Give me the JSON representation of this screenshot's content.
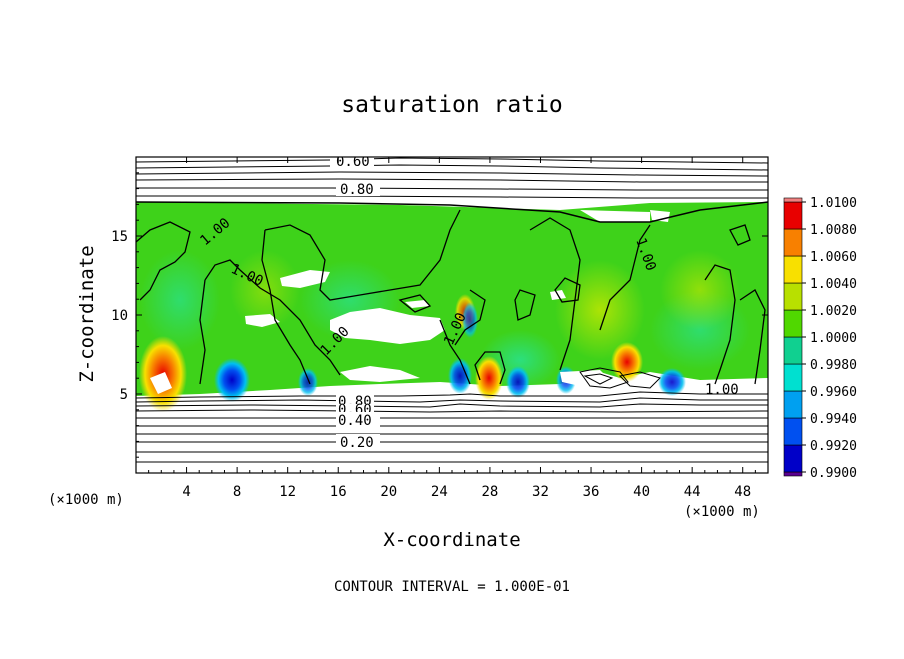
{
  "chart_data": {
    "type": "heatmap",
    "title": "saturation ratio",
    "xlabel": "X-coordinate",
    "ylabel": "Z-coordinate",
    "x_unit": "(×1000 m)",
    "y_unit": "(×1000 m)",
    "xlim": [
      0,
      50
    ],
    "ylim": [
      0,
      20
    ],
    "x_ticks": [
      4,
      8,
      12,
      16,
      20,
      24,
      28,
      32,
      36,
      40,
      44,
      48
    ],
    "y_ticks": [
      5,
      10,
      15
    ],
    "colorbar": {
      "levels": [
        "0.9900",
        "0.9920",
        "0.9940",
        "0.9960",
        "0.9980",
        "1.0000",
        "1.0020",
        "1.0040",
        "1.0060",
        "1.0080",
        "1.0100"
      ],
      "colors": [
        "#5a0090",
        "#0000c8",
        "#0050f0",
        "#00a0f0",
        "#00e0d0",
        "#10d090",
        "#50d800",
        "#b8e000",
        "#f8e000",
        "#f88000",
        "#e80000",
        "#f08080"
      ]
    },
    "contour_labels": [
      "0.60",
      "0.80",
      "1.00",
      "1.00",
      "1.00",
      "1.00",
      "1.00",
      "1.00",
      "0.80",
      "0.60",
      "0.40",
      "0.20"
    ],
    "footer": "CONTOUR INTERVAL = 1.000E-01"
  },
  "colors": {
    "field_green": "#3ed21a",
    "frame": "#000000",
    "background": "#ffffff"
  }
}
